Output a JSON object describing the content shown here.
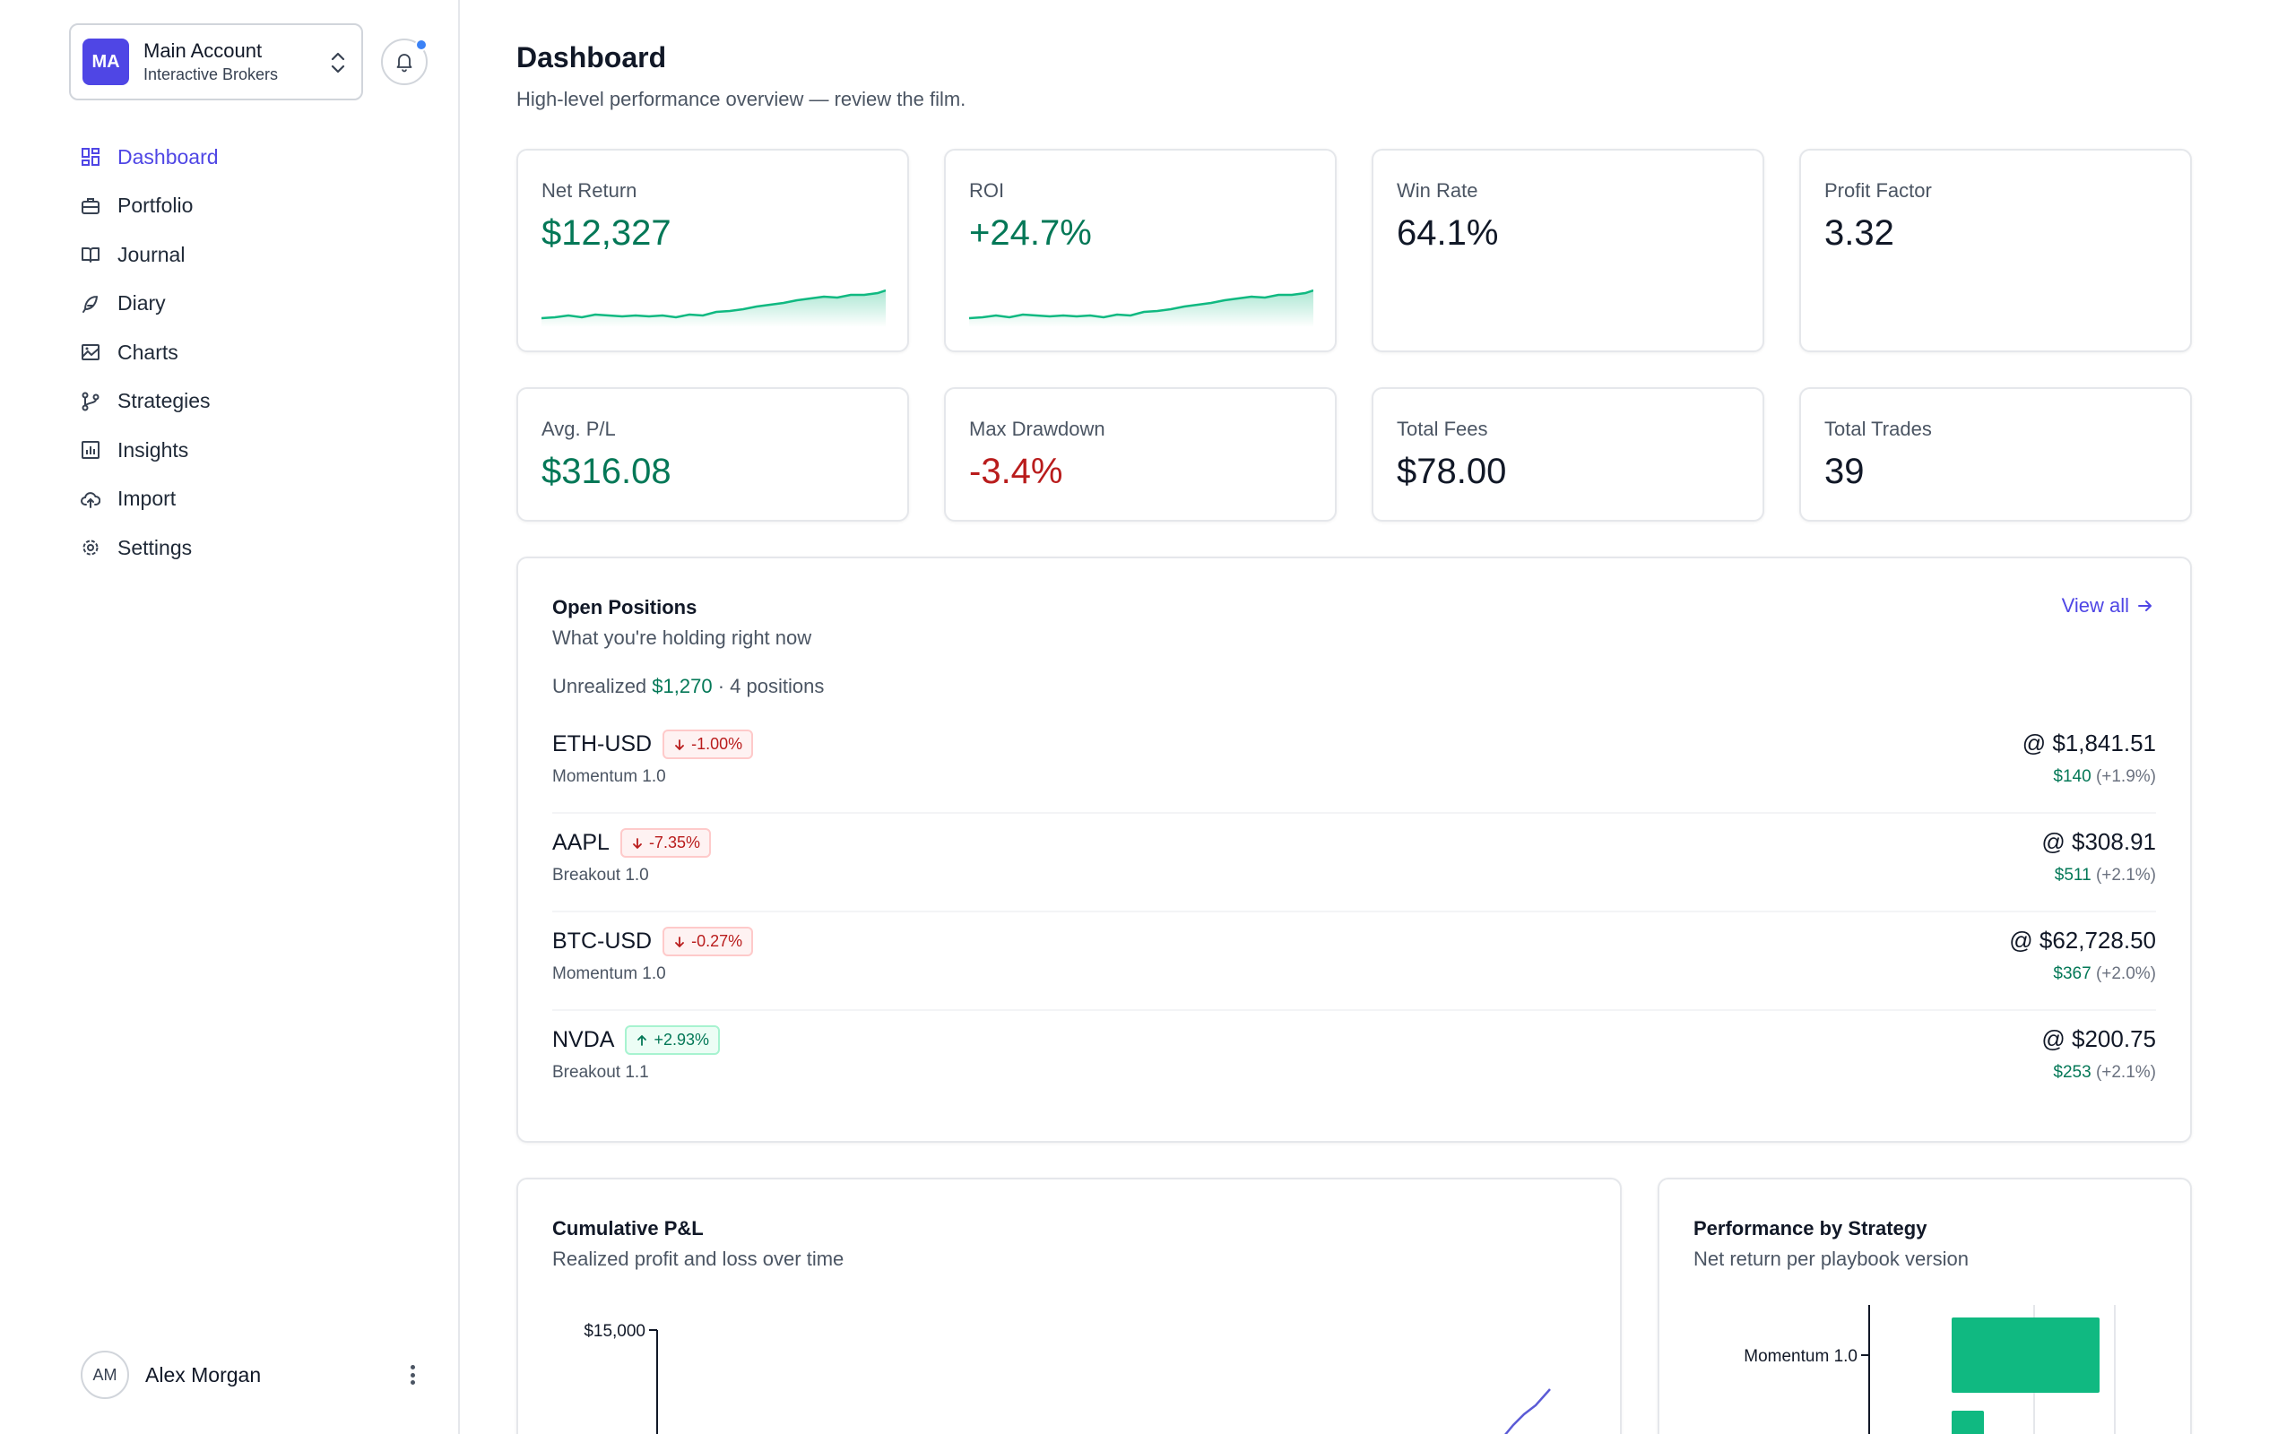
{
  "account": {
    "initials": "MA",
    "name": "Main Account",
    "broker": "Interactive Brokers"
  },
  "nav": [
    {
      "label": "Dashboard",
      "icon": "dashboard-icon",
      "active": true
    },
    {
      "label": "Portfolio",
      "icon": "briefcase-icon"
    },
    {
      "label": "Journal",
      "icon": "book-icon"
    },
    {
      "label": "Diary",
      "icon": "feather-icon"
    },
    {
      "label": "Charts",
      "icon": "image-chart-icon"
    },
    {
      "label": "Strategies",
      "icon": "git-branch-icon"
    },
    {
      "label": "Insights",
      "icon": "bar-chart-icon"
    },
    {
      "label": "Import",
      "icon": "cloud-upload-icon"
    },
    {
      "label": "Settings",
      "icon": "gear-icon"
    }
  ],
  "user": {
    "initials": "AM",
    "name": "Alex Morgan"
  },
  "header": {
    "title": "Dashboard",
    "subtitle": "High-level performance overview — review the film."
  },
  "stats": [
    {
      "label": "Net Return",
      "value": "$12,327",
      "tone": "pos"
    },
    {
      "label": "ROI",
      "value": "+24.7%",
      "tone": "pos"
    },
    {
      "label": "Win Rate",
      "value": "64.1%",
      "tone": "neutral"
    },
    {
      "label": "Profit Factor",
      "value": "3.32",
      "tone": "neutral"
    },
    {
      "label": "Avg. P/L",
      "value": "$316.08",
      "tone": "pos"
    },
    {
      "label": "Max Drawdown",
      "value": "-3.4%",
      "tone": "neg"
    },
    {
      "label": "Total Fees",
      "value": "$78.00",
      "tone": "neutral"
    },
    {
      "label": "Total Trades",
      "value": "39",
      "tone": "neutral"
    }
  ],
  "open_positions": {
    "title": "Open Positions",
    "subtitle": "What you're holding right now",
    "view_all": "View all",
    "unrealized_label": "Unrealized",
    "unrealized_value": "$1,270",
    "positions_count": "· 4 positions",
    "rows": [
      {
        "symbol": "ETH-USD",
        "change": "-1.00%",
        "dir": "down",
        "strategy": "Momentum 1.0",
        "price": "@ $1,841.51",
        "pl": "$140",
        "pl_pct": "(+1.9%)"
      },
      {
        "symbol": "AAPL",
        "change": "-7.35%",
        "dir": "down",
        "strategy": "Breakout 1.0",
        "price": "@ $308.91",
        "pl": "$511",
        "pl_pct": "(+2.1%)"
      },
      {
        "symbol": "BTC-USD",
        "change": "-0.27%",
        "dir": "down",
        "strategy": "Momentum 1.0",
        "price": "@ $62,728.50",
        "pl": "$367",
        "pl_pct": "(+2.0%)"
      },
      {
        "symbol": "NVDA",
        "change": "+2.93%",
        "dir": "up",
        "strategy": "Breakout 1.1",
        "price": "@ $200.75",
        "pl": "$253",
        "pl_pct": "(+2.1%)"
      }
    ]
  },
  "cumulative": {
    "title": "Cumulative P&L",
    "subtitle": "Realized profit and loss over time",
    "y_tick": "$15,000"
  },
  "strategy_perf": {
    "title": "Performance by Strategy",
    "subtitle": "Net return per playbook version",
    "first_label": "Momentum 1.0"
  },
  "colors": {
    "accent": "#4f46e5",
    "positive": "#047857",
    "negative": "#b91c1c",
    "bar": "#10b981",
    "line": "#5b5bd6"
  }
}
